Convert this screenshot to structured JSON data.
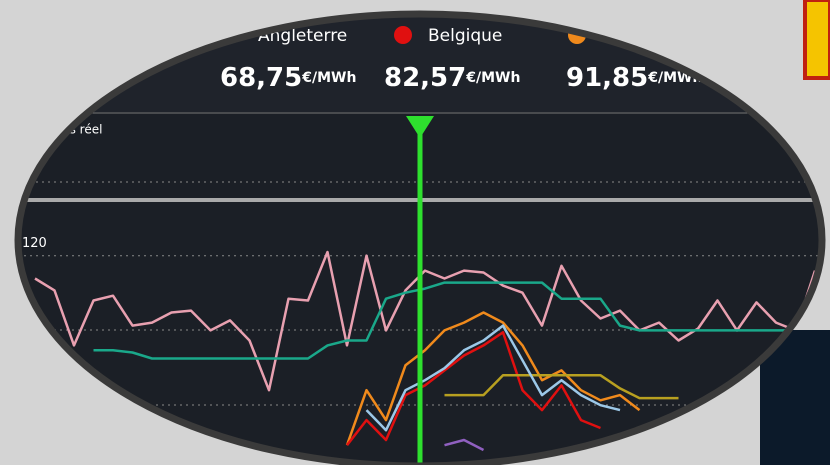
{
  "header": {
    "legend": [
      {
        "label": "Angleterre"
      },
      {
        "label": "Belgique",
        "color": "#e01010"
      },
      {
        "color": "#f08a1c"
      }
    ],
    "prices": [
      {
        "value": "68,75",
        "unit": "€/MWh"
      },
      {
        "value": "82,57",
        "unit": "€/MWh"
      },
      {
        "value": "91,85",
        "unit": "€/MWh"
      }
    ]
  },
  "chart_data": {
    "type": "line",
    "panel_label": "ps réel",
    "categories": [
      null,
      null,
      null,
      null,
      null,
      null,
      null,
      null,
      null,
      null,
      null,
      null,
      null,
      null,
      null,
      null,
      null,
      null,
      null,
      null,
      null,
      null,
      null,
      null,
      null,
      null,
      null,
      null,
      null,
      null,
      null,
      null,
      null,
      null,
      null,
      null,
      null,
      null,
      null,
      null,
      null
    ],
    "ylim": [
      64,
      125
    ],
    "yticks": [
      120
    ],
    "grid": true,
    "series": [
      {
        "color": "#e8a0b0",
        "values": [
          113.9,
          110.7,
          96,
          108,
          109.3,
          101.3,
          102.1,
          104.8,
          105.3,
          100,
          102.7,
          97.3,
          84,
          108.5,
          108,
          121,
          96,
          120,
          100,
          110.7,
          116,
          113.9,
          116,
          115.5,
          112,
          110.1,
          101.3,
          117.3,
          108,
          103.2,
          105.3,
          100,
          102.1,
          97.3,
          100.5,
          108,
          100,
          107.5,
          102.1,
          100,
          116
        ]
      },
      {
        "color": "#1aa88a",
        "values": [
          null,
          null,
          null,
          94.7,
          94.7,
          94.1,
          92.5,
          92.5,
          92.5,
          92.5,
          92.5,
          92.5,
          92.5,
          92.5,
          92.5,
          96,
          97.3,
          97.3,
          108.5,
          110.1,
          111.2,
          112.8,
          112.8,
          112.8,
          112.8,
          112.8,
          112.8,
          108.5,
          108.5,
          108.5,
          101.3,
          100,
          100,
          100,
          100,
          100,
          100,
          100,
          100,
          100,
          null
        ]
      },
      {
        "color": "#f08a1c",
        "values": [
          null,
          null,
          null,
          null,
          null,
          null,
          null,
          null,
          null,
          null,
          null,
          null,
          null,
          null,
          null,
          null,
          69.3,
          84,
          76,
          90.7,
          94.7,
          100,
          102.1,
          104.8,
          102.1,
          96,
          86.7,
          89.3,
          84,
          81.3,
          82.7,
          78.7,
          null,
          null,
          null,
          null,
          null,
          null,
          null,
          null,
          null
        ]
      },
      {
        "color": "#e01010",
        "values": [
          null,
          null,
          null,
          null,
          null,
          null,
          null,
          null,
          null,
          null,
          null,
          null,
          null,
          null,
          null,
          null,
          69.3,
          76,
          70.7,
          82.7,
          85.3,
          89.3,
          93.3,
          96,
          99.5,
          84,
          78.7,
          85.3,
          76,
          73.9,
          null,
          null,
          null,
          null,
          null,
          null,
          null,
          null,
          null,
          null,
          null
        ]
      },
      {
        "color": "#b8a020",
        "values": [
          null,
          null,
          null,
          null,
          null,
          null,
          null,
          null,
          null,
          null,
          null,
          null,
          null,
          null,
          null,
          null,
          null,
          null,
          null,
          null,
          null,
          82.7,
          82.7,
          82.7,
          88,
          88,
          88,
          88,
          88,
          88,
          84.5,
          81.9,
          81.9,
          81.9,
          null,
          null,
          null,
          null,
          null,
          null,
          null
        ]
      },
      {
        "color": "#9cc8e8",
        "values": [
          null,
          null,
          null,
          null,
          null,
          null,
          null,
          null,
          null,
          null,
          null,
          null,
          null,
          null,
          null,
          null,
          null,
          78.7,
          73.3,
          84,
          86.7,
          89.9,
          94.7,
          97.3,
          101.3,
          92,
          82.7,
          86.7,
          82.7,
          80,
          78.7,
          null,
          null,
          null,
          null,
          null,
          null,
          null,
          null,
          null,
          null
        ]
      },
      {
        "color": "#9060c0",
        "values": [
          null,
          null,
          null,
          null,
          null,
          null,
          null,
          null,
          null,
          null,
          null,
          null,
          null,
          null,
          null,
          null,
          null,
          null,
          null,
          null,
          null,
          69.3,
          70.7,
          68,
          null,
          null,
          null,
          null,
          null,
          null,
          null,
          null,
          null,
          null,
          null,
          null,
          null,
          null,
          null,
          null,
          null
        ]
      }
    ]
  }
}
